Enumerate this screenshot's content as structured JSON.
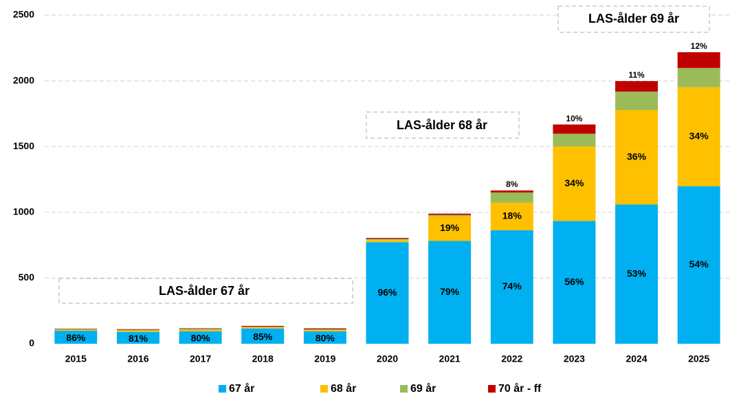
{
  "chart_data": {
    "type": "stacked_bar",
    "categories": [
      "2015",
      "2016",
      "2017",
      "2018",
      "2019",
      "2020",
      "2021",
      "2022",
      "2023",
      "2024",
      "2025"
    ],
    "series": [
      {
        "name": "67 år",
        "color": "#00b0f0",
        "values": [
          99,
          90,
          94,
          116,
          94,
          773,
          782,
          863,
          934,
          1059,
          1198
        ],
        "share_labels": [
          "86%",
          "81%",
          "80%",
          "85%",
          "80%",
          "96%",
          "79%",
          "74%",
          "56%",
          "53%",
          "54%"
        ]
      },
      {
        "name": "68 år",
        "color": "#ffc000",
        "values": [
          7,
          9,
          10,
          8,
          10,
          15,
          188,
          210,
          567,
          719,
          754
        ],
        "share_labels": [
          null,
          null,
          null,
          null,
          null,
          null,
          "19%",
          "18%",
          "34%",
          "36%",
          "34%"
        ]
      },
      {
        "name": "69 år",
        "color": "#9bbb59",
        "values": [
          6,
          8,
          10,
          6,
          6,
          10,
          10,
          78,
          97,
          140,
          146
        ]
      },
      {
        "name": "70 år - ff",
        "color": "#c00000",
        "values": [
          3,
          4,
          4,
          6,
          7,
          7,
          10,
          15,
          70,
          80,
          120
        ]
      }
    ],
    "top_labels": [
      null,
      null,
      null,
      null,
      null,
      null,
      null,
      "8%",
      "10%",
      "11%",
      "12%"
    ],
    "annotations": [
      "LAS-ålder 67 år",
      "LAS-ålder 68 år",
      "LAS-ålder 69 år"
    ],
    "ylim": [
      0,
      2500
    ],
    "yticks": [
      0,
      500,
      1000,
      1500,
      2000,
      2500
    ],
    "grid": true,
    "legend": "bottom"
  }
}
